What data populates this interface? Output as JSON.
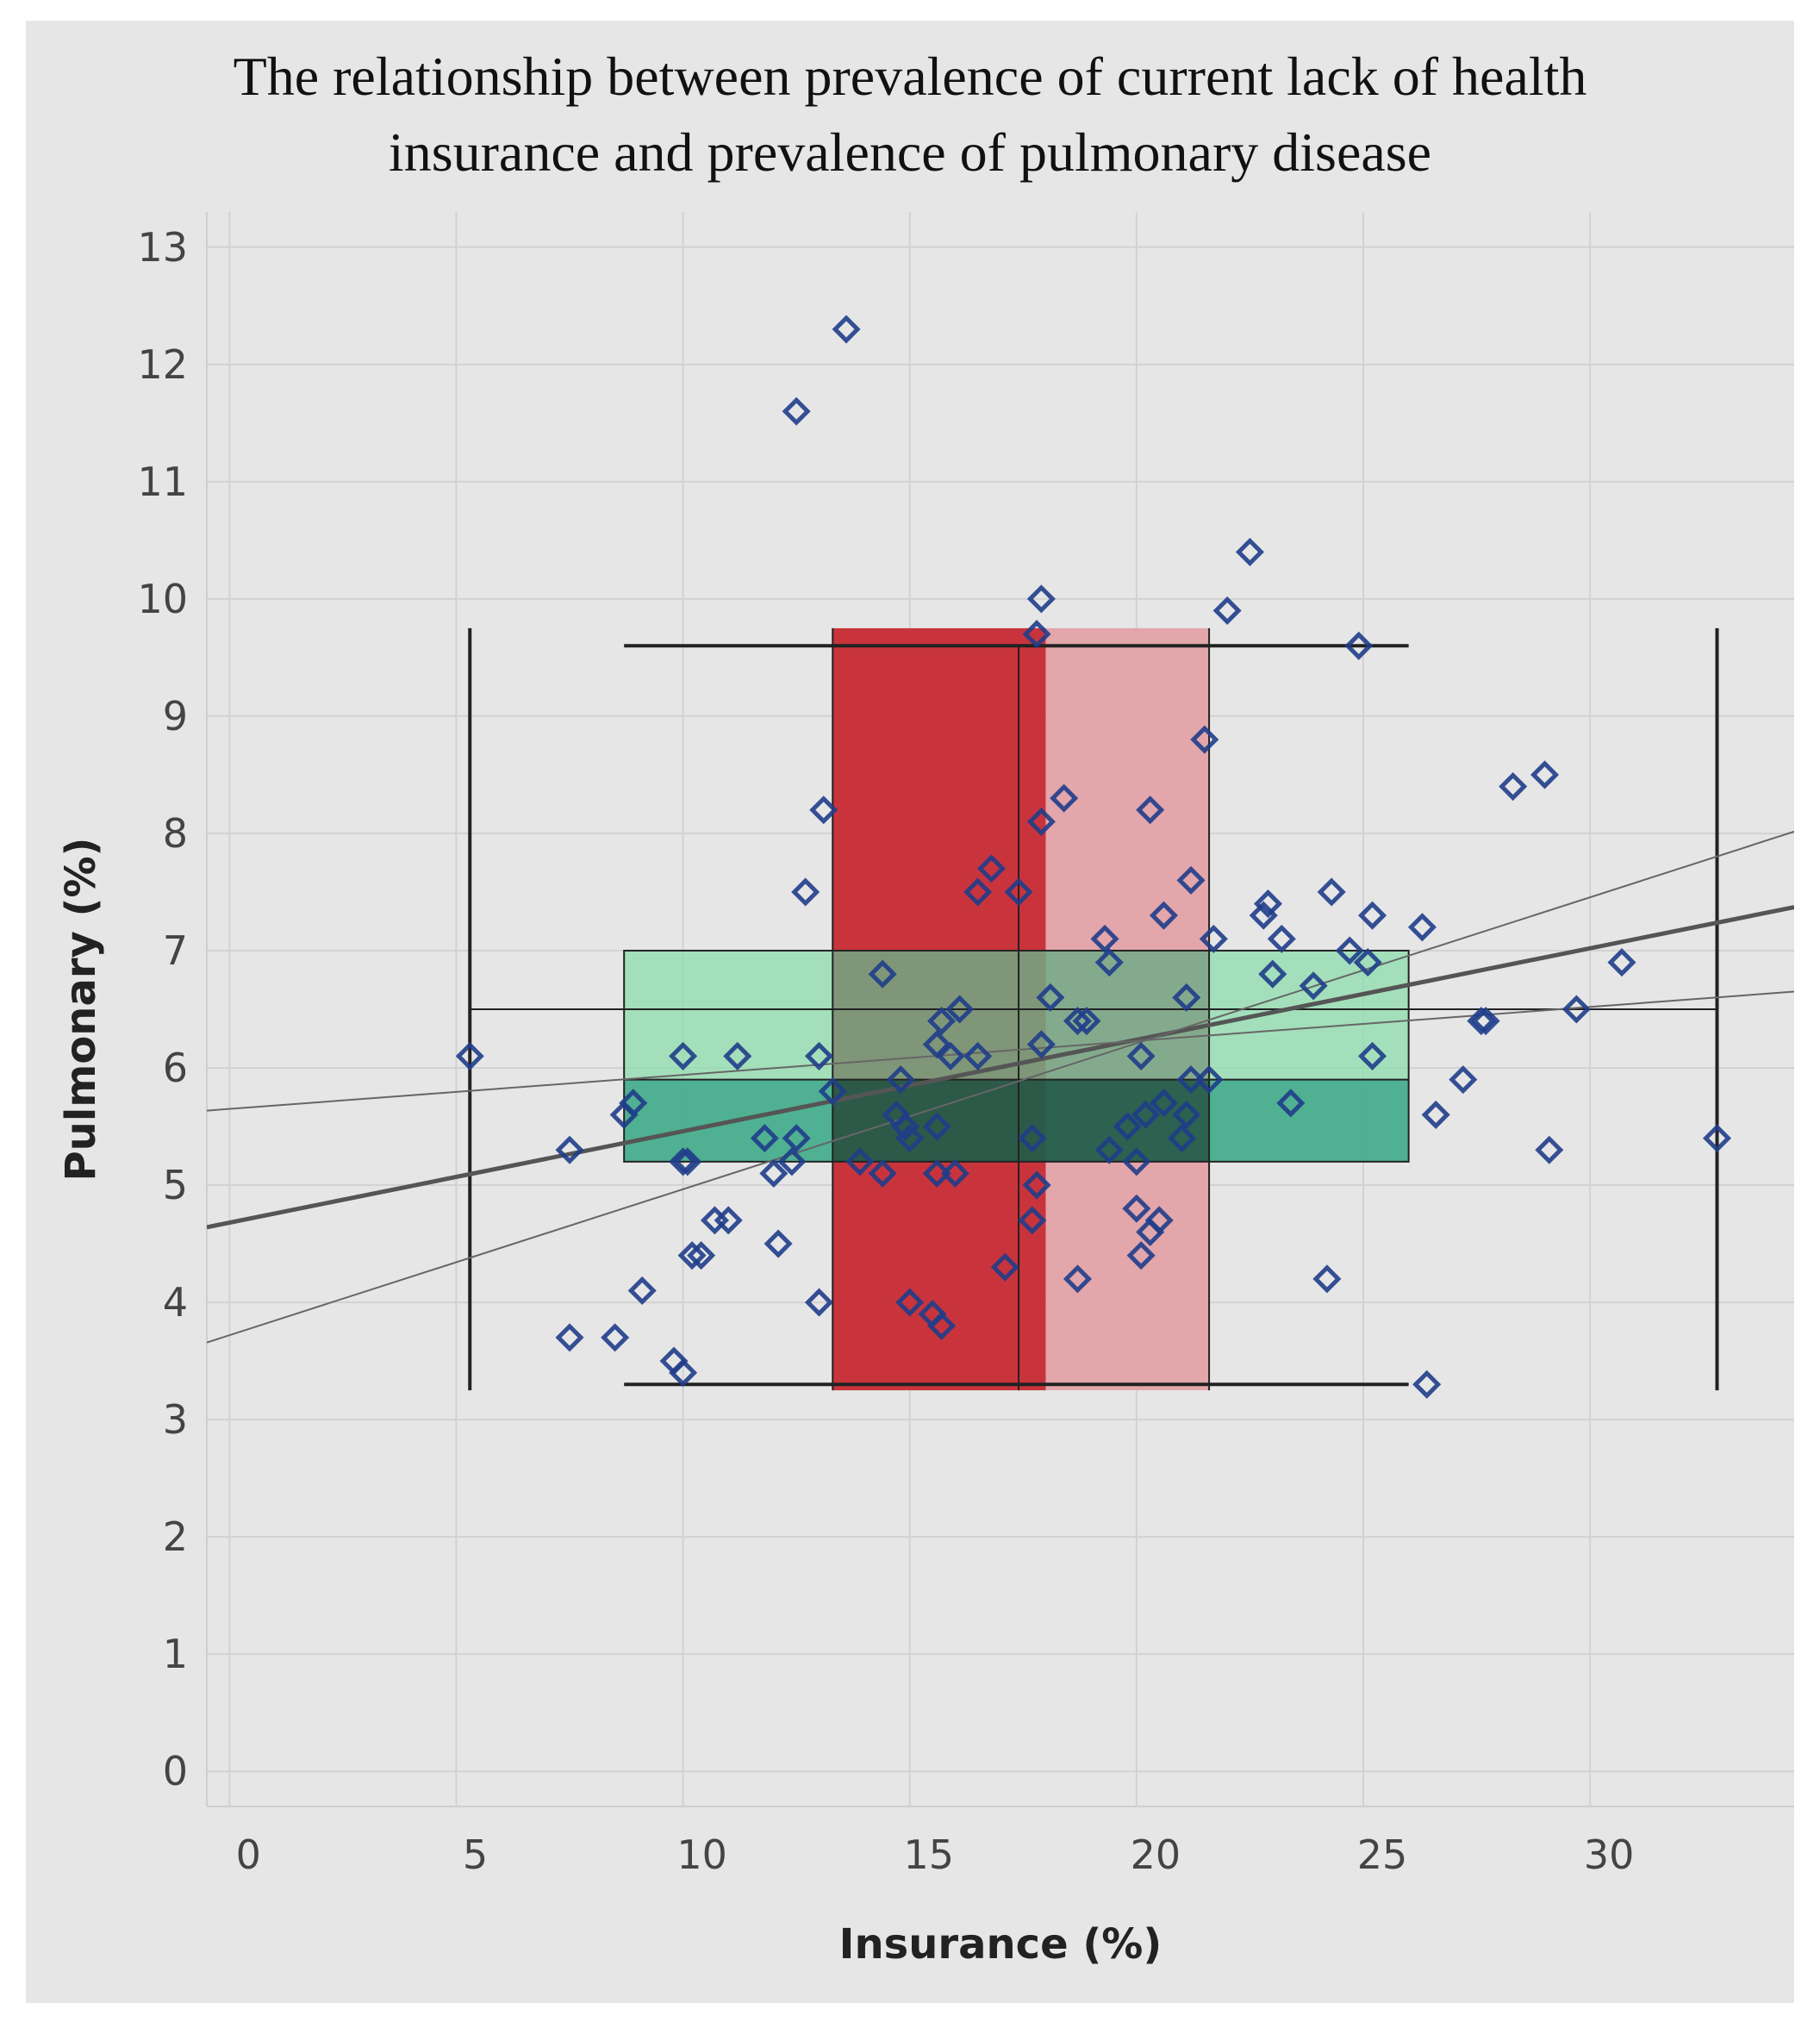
{
  "chart_data": {
    "type": "scatter",
    "title_lines": [
      "The relationship between prevalence of current lack of health",
      "insurance and prevalence of pulmonary disease"
    ],
    "xlabel": "Insurance (%)",
    "ylabel": "Pulmonary (%)",
    "xlim": [
      -0.5,
      34.5
    ],
    "ylim": [
      -0.3,
      13.3
    ],
    "x_ticks": [
      0,
      5,
      10,
      15,
      20,
      25,
      30
    ],
    "y_ticks": [
      0,
      1,
      2,
      3,
      4,
      5,
      6,
      7,
      8,
      9,
      10,
      11,
      12,
      13
    ],
    "grid": true,
    "colors": {
      "background": "#e6e6e6",
      "points": "#1f3d8a",
      "box_dark_red": "#c9343c",
      "box_light_red": "#e2a6ab",
      "box_light_green": "#8fdcad",
      "box_dark_green": "#3aa986",
      "whisker": "#222222",
      "trend": "#555555",
      "band": "#666666"
    },
    "x_box": {
      "min": 5.3,
      "q1": 13.3,
      "median": 18.0,
      "q3": 21.6,
      "max": 32.8,
      "inner_line": 17.4,
      "y_top": 9.75,
      "y_bottom": 3.25
    },
    "y_box": {
      "min": 3.3,
      "q1": 5.2,
      "median": 5.9,
      "q3": 7.0,
      "max": 9.6,
      "mid_line": 6.5,
      "x_left": 8.7,
      "x_right": 26.0
    },
    "x_whisker_ends": {
      "x_left": 5.3,
      "x_right": 32.8,
      "y": 6.5
    },
    "trend_line": {
      "slope": 0.078,
      "intercept": 4.68
    },
    "confidence_band": {
      "upper": {
        "slope": 0.1245,
        "intercept": 3.72
      },
      "lower": {
        "slope": 0.029,
        "intercept": 5.65
      }
    },
    "points": [
      {
        "x": 5.3,
        "y": 6.1
      },
      {
        "x": 7.5,
        "y": 5.3
      },
      {
        "x": 7.5,
        "y": 3.7
      },
      {
        "x": 8.5,
        "y": 3.7
      },
      {
        "x": 8.7,
        "y": 5.6
      },
      {
        "x": 8.9,
        "y": 5.7
      },
      {
        "x": 9.1,
        "y": 4.1
      },
      {
        "x": 9.8,
        "y": 3.5
      },
      {
        "x": 10.0,
        "y": 3.4
      },
      {
        "x": 10.0,
        "y": 5.2
      },
      {
        "x": 10.1,
        "y": 5.2
      },
      {
        "x": 10.0,
        "y": 6.1
      },
      {
        "x": 10.2,
        "y": 4.4
      },
      {
        "x": 10.4,
        "y": 4.4
      },
      {
        "x": 10.7,
        "y": 4.7
      },
      {
        "x": 11.0,
        "y": 4.7
      },
      {
        "x": 11.2,
        "y": 6.1
      },
      {
        "x": 11.8,
        "y": 5.4
      },
      {
        "x": 12.0,
        "y": 5.1
      },
      {
        "x": 12.1,
        "y": 4.5
      },
      {
        "x": 12.4,
        "y": 5.2
      },
      {
        "x": 12.5,
        "y": 5.4
      },
      {
        "x": 12.5,
        "y": 11.6
      },
      {
        "x": 12.7,
        "y": 7.5
      },
      {
        "x": 13.0,
        "y": 4.0
      },
      {
        "x": 13.0,
        "y": 6.1
      },
      {
        "x": 13.1,
        "y": 8.2
      },
      {
        "x": 13.3,
        "y": 5.8
      },
      {
        "x": 13.6,
        "y": 12.3
      },
      {
        "x": 13.9,
        "y": 5.2
      },
      {
        "x": 14.4,
        "y": 5.1
      },
      {
        "x": 14.4,
        "y": 6.8
      },
      {
        "x": 14.7,
        "y": 5.6
      },
      {
        "x": 14.8,
        "y": 5.9
      },
      {
        "x": 14.9,
        "y": 5.5
      },
      {
        "x": 15.0,
        "y": 5.4
      },
      {
        "x": 15.0,
        "y": 4.0
      },
      {
        "x": 15.5,
        "y": 3.9
      },
      {
        "x": 15.7,
        "y": 3.8
      },
      {
        "x": 15.6,
        "y": 5.1
      },
      {
        "x": 15.6,
        "y": 5.5
      },
      {
        "x": 15.6,
        "y": 6.2
      },
      {
        "x": 15.7,
        "y": 6.4
      },
      {
        "x": 15.9,
        "y": 6.1
      },
      {
        "x": 16.0,
        "y": 5.1
      },
      {
        "x": 16.1,
        "y": 6.5
      },
      {
        "x": 16.5,
        "y": 6.1
      },
      {
        "x": 16.5,
        "y": 7.5
      },
      {
        "x": 16.8,
        "y": 7.7
      },
      {
        "x": 17.1,
        "y": 4.3
      },
      {
        "x": 17.4,
        "y": 7.5
      },
      {
        "x": 17.7,
        "y": 5.4
      },
      {
        "x": 17.7,
        "y": 4.7
      },
      {
        "x": 17.8,
        "y": 9.7
      },
      {
        "x": 17.8,
        "y": 5.0
      },
      {
        "x": 17.9,
        "y": 10.0
      },
      {
        "x": 17.9,
        "y": 8.1
      },
      {
        "x": 17.9,
        "y": 6.2
      },
      {
        "x": 18.1,
        "y": 6.6
      },
      {
        "x": 18.4,
        "y": 8.3
      },
      {
        "x": 18.7,
        "y": 4.2
      },
      {
        "x": 18.7,
        "y": 6.4
      },
      {
        "x": 18.9,
        "y": 6.4
      },
      {
        "x": 19.3,
        "y": 7.1
      },
      {
        "x": 19.4,
        "y": 5.3
      },
      {
        "x": 19.4,
        "y": 6.9
      },
      {
        "x": 19.8,
        "y": 5.5
      },
      {
        "x": 20.0,
        "y": 5.2
      },
      {
        "x": 20.0,
        "y": 4.8
      },
      {
        "x": 20.1,
        "y": 4.4
      },
      {
        "x": 20.1,
        "y": 6.1
      },
      {
        "x": 20.2,
        "y": 5.6
      },
      {
        "x": 20.3,
        "y": 4.6
      },
      {
        "x": 20.3,
        "y": 8.2
      },
      {
        "x": 20.5,
        "y": 4.7
      },
      {
        "x": 20.6,
        "y": 5.7
      },
      {
        "x": 20.6,
        "y": 7.3
      },
      {
        "x": 21.0,
        "y": 5.4
      },
      {
        "x": 21.1,
        "y": 5.6
      },
      {
        "x": 21.1,
        "y": 6.6
      },
      {
        "x": 21.2,
        "y": 7.6
      },
      {
        "x": 21.2,
        "y": 5.9
      },
      {
        "x": 21.5,
        "y": 8.8
      },
      {
        "x": 21.6,
        "y": 5.9
      },
      {
        "x": 21.7,
        "y": 7.1
      },
      {
        "x": 22.0,
        "y": 9.9
      },
      {
        "x": 22.5,
        "y": 10.4
      },
      {
        "x": 22.8,
        "y": 7.3
      },
      {
        "x": 22.9,
        "y": 7.4
      },
      {
        "x": 23.0,
        "y": 6.8
      },
      {
        "x": 23.2,
        "y": 7.1
      },
      {
        "x": 23.4,
        "y": 5.7
      },
      {
        "x": 23.9,
        "y": 6.7
      },
      {
        "x": 24.2,
        "y": 4.2
      },
      {
        "x": 24.3,
        "y": 7.5
      },
      {
        "x": 24.7,
        "y": 7.0
      },
      {
        "x": 24.9,
        "y": 9.6
      },
      {
        "x": 25.1,
        "y": 6.9
      },
      {
        "x": 25.2,
        "y": 7.3
      },
      {
        "x": 25.2,
        "y": 6.1
      },
      {
        "x": 26.3,
        "y": 7.2
      },
      {
        "x": 26.4,
        "y": 3.3
      },
      {
        "x": 26.6,
        "y": 5.6
      },
      {
        "x": 27.2,
        "y": 5.9
      },
      {
        "x": 27.6,
        "y": 6.4
      },
      {
        "x": 27.7,
        "y": 6.4
      },
      {
        "x": 28.3,
        "y": 8.4
      },
      {
        "x": 29.0,
        "y": 8.5
      },
      {
        "x": 29.1,
        "y": 5.3
      },
      {
        "x": 29.7,
        "y": 6.5
      },
      {
        "x": 30.7,
        "y": 6.9
      },
      {
        "x": 32.8,
        "y": 5.4
      }
    ]
  }
}
